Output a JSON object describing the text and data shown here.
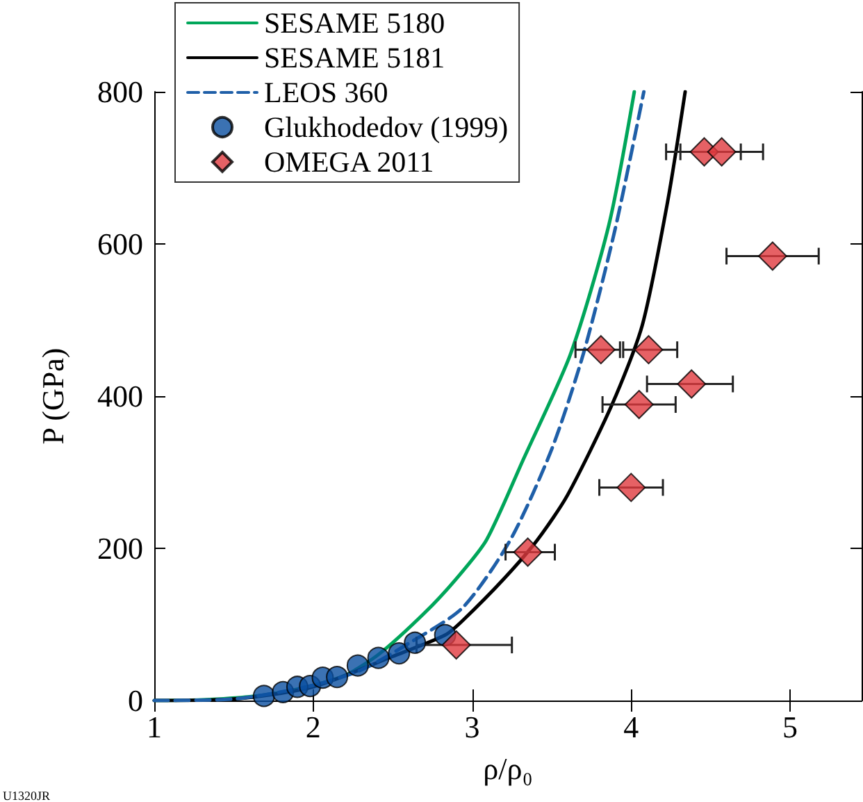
{
  "chart_data": {
    "type": "line",
    "xlabel": "ρ/ρ₀",
    "ylabel": "P (GPa)",
    "xlim": [
      1,
      5.45
    ],
    "xticks": [
      1,
      2,
      3,
      4,
      5
    ],
    "ylim": [
      0,
      800
    ],
    "yticks": [
      0,
      200,
      400,
      600,
      800
    ],
    "grid": false,
    "legend": "top left",
    "annotations": [
      "U1320JR"
    ],
    "series": [
      {
        "name": "SESAME 5180",
        "color": "#00a65a",
        "line_style": "solid",
        "marker": "none",
        "x": [
          1,
          1.3,
          1.6,
          1.9,
          2.2,
          2.42,
          2.7,
          2.9,
          3.09,
          3.32,
          3.62,
          3.86,
          4.02
        ],
        "values": [
          0,
          1,
          5,
          15,
          33,
          62,
          115,
          160,
          211,
          316,
          456,
          625,
          800
        ]
      },
      {
        "name": "SESAME 5181",
        "color": "#000000",
        "line_style": "solid",
        "marker": "none",
        "x": [
          1,
          1.5,
          2.0,
          2.5,
          2.83,
          2.94,
          3.2,
          3.41,
          3.6,
          3.88,
          4.07,
          4.23,
          4.34
        ],
        "values": [
          0,
          2,
          18,
          58,
          86,
          105,
          160,
          211,
          270,
          389,
          493,
          656,
          800
        ]
      },
      {
        "name": "LEOS 360",
        "color": "#1f5fa8",
        "line_style": "dashed",
        "marker": "none",
        "x": [
          1,
          1.5,
          2.0,
          2.3,
          2.6,
          2.94,
          3.24,
          3.5,
          3.7,
          3.9,
          4.08
        ],
        "values": [
          0,
          2,
          20,
          40,
          75,
          122,
          211,
          330,
          456,
          620,
          800
        ]
      },
      {
        "name": "Glukhodedov (1999)",
        "type": "scatter",
        "color": "#0a4fa0",
        "marker": "circle",
        "x": [
          1.69,
          1.81,
          1.9,
          1.98,
          2.06,
          2.15,
          2.28,
          2.41,
          2.54,
          2.64,
          2.83
        ],
        "values": [
          6,
          11,
          18,
          19,
          30,
          31,
          46,
          56,
          62,
          76,
          86
        ]
      },
      {
        "name": "OMEGA 2011",
        "type": "scatter",
        "color": "#e0393e",
        "marker": "diamond",
        "x": [
          2.9,
          3.35,
          4.46,
          4.57,
          4.89,
          3.81,
          4.11,
          4.38,
          4.05,
          4.0
        ],
        "values": [
          73,
          195,
          721,
          721,
          584,
          461,
          461,
          416,
          389,
          280
        ],
        "xerrors": [
          [
            2.65,
            3.25
          ],
          [
            3.21,
            3.52
          ],
          [
            4.22,
            4.69
          ],
          [
            4.31,
            4.83
          ],
          [
            4.6,
            5.18
          ],
          [
            3.65,
            3.93
          ],
          [
            3.95,
            4.29
          ],
          [
            4.1,
            4.64
          ],
          [
            3.82,
            4.28
          ],
          [
            3.8,
            4.2
          ]
        ]
      }
    ]
  }
}
